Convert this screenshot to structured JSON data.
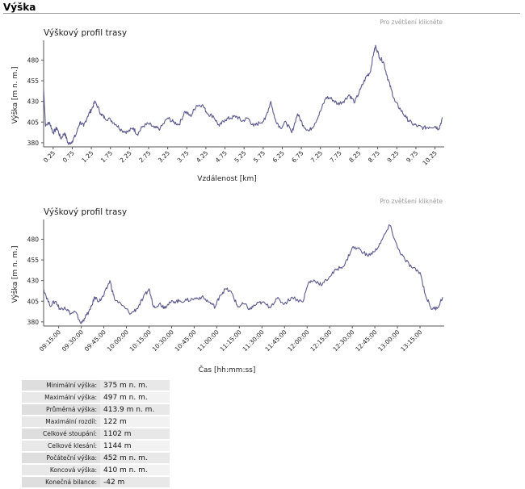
{
  "section": {
    "title": "Výška"
  },
  "zoom_hint": "Pro zvětšení klikněte",
  "chart_data": [
    {
      "type": "line",
      "title": "Výškový profil trasy",
      "xlabel": "Vzdálenost [km]",
      "ylabel": "Výška [m n. m.]",
      "xlim": [
        0,
        10.45
      ],
      "ylim": [
        375,
        500
      ],
      "yticks": [
        380,
        405,
        430,
        455,
        480
      ],
      "xticks": [
        "0.25",
        "0.75",
        "1.25",
        "1.75",
        "2.25",
        "2.75",
        "3.25",
        "3.75",
        "4.25",
        "4.75",
        "5.25",
        "5.75",
        "6.25",
        "6.75",
        "7.25",
        "7.75",
        "8.25",
        "8.75",
        "9.25",
        "9.75",
        "10.25"
      ],
      "xtick_values": [
        0.25,
        0.75,
        1.25,
        1.75,
        2.25,
        2.75,
        3.25,
        3.75,
        4.25,
        4.75,
        5.25,
        5.75,
        6.25,
        6.75,
        7.25,
        7.75,
        8.25,
        8.75,
        9.25,
        9.75,
        10.25
      ],
      "grid": false,
      "color": "#5c5a8e",
      "series": [
        {
          "x": [
            0,
            0.05,
            0.15,
            0.25,
            0.35,
            0.45,
            0.55,
            0.65,
            0.75,
            0.85,
            0.95,
            1.05,
            1.15,
            1.25,
            1.35,
            1.5,
            1.6,
            1.75,
            1.9,
            2.05,
            2.2,
            2.35,
            2.45,
            2.6,
            2.75,
            2.9,
            3.05,
            3.25,
            3.4,
            3.55,
            3.7,
            3.85,
            4.0,
            4.15,
            4.3,
            4.45,
            4.6,
            4.75,
            4.9,
            5.05,
            5.2,
            5.35,
            5.5,
            5.65,
            5.8,
            5.95,
            6.05,
            6.2,
            6.35,
            6.5,
            6.65,
            6.8,
            6.95,
            7.1,
            7.25,
            7.4,
            7.55,
            7.7,
            7.85,
            8.0,
            8.15,
            8.3,
            8.45,
            8.55,
            8.65,
            8.7,
            8.8,
            8.9,
            9.0,
            9.1,
            9.2,
            9.35,
            9.5,
            9.65,
            9.8,
            9.95,
            10.1,
            10.25,
            10.35,
            10.45
          ],
          "y": [
            445,
            400,
            405,
            392,
            398,
            385,
            392,
            378,
            382,
            390,
            405,
            400,
            412,
            420,
            430,
            415,
            410,
            408,
            402,
            395,
            393,
            398,
            390,
            400,
            403,
            398,
            397,
            410,
            405,
            402,
            418,
            412,
            425,
            426,
            415,
            412,
            400,
            408,
            410,
            412,
            406,
            410,
            400,
            404,
            408,
            430,
            410,
            398,
            405,
            392,
            415,
            401,
            394,
            403,
            418,
            435,
            433,
            427,
            430,
            438,
            429,
            445,
            460,
            465,
            490,
            497,
            483,
            478,
            460,
            445,
            430,
            420,
            410,
            403,
            400,
            398,
            399,
            400,
            397,
            410
          ]
        }
      ]
    },
    {
      "type": "line",
      "title": "Výškový profil trasy",
      "xlabel": "Čas  [hh:mm:ss]",
      "ylabel": "Výška [m n. m.]",
      "xlim": [
        0,
        265
      ],
      "ylim": [
        375,
        500
      ],
      "yticks": [
        380,
        405,
        430,
        455,
        480
      ],
      "xticks": [
        "09:15:00",
        "09:30:00",
        "09:45:00",
        "10:00:00",
        "10:15:00",
        "10:30:00",
        "10:45:00",
        "11:00:00",
        "11:15:00",
        "11:30:00",
        "11:45:00",
        "12:00:00",
        "12:15:00",
        "12:30:00",
        "12:45:00",
        "13:00:00",
        "13:15:00"
      ],
      "xtick_values": [
        10,
        25,
        40,
        55,
        70,
        85,
        100,
        115,
        130,
        145,
        160,
        175,
        190,
        205,
        220,
        235,
        250
      ],
      "grid": false,
      "color": "#5c5a8e",
      "series": [
        {
          "x": [
            0,
            4,
            8,
            11,
            14,
            18,
            21,
            25,
            27,
            31,
            34,
            37,
            40,
            44,
            47,
            52,
            58,
            62,
            66,
            70,
            73,
            77,
            80,
            82,
            86,
            90,
            95,
            100,
            105,
            110,
            114,
            117,
            121,
            125,
            129,
            133,
            137,
            140,
            145,
            150,
            155,
            160,
            165,
            172,
            176,
            180,
            185,
            190,
            195,
            200,
            205,
            210,
            215,
            220,
            225,
            230,
            235,
            240,
            245,
            250,
            254,
            258,
            262,
            265
          ],
          "y": [
            420,
            400,
            405,
            395,
            398,
            390,
            392,
            378,
            384,
            395,
            410,
            405,
            412,
            430,
            408,
            400,
            390,
            396,
            408,
            420,
            398,
            402,
            398,
            400,
            405,
            405,
            406,
            408,
            410,
            404,
            398,
            412,
            420,
            415,
            398,
            402,
            395,
            400,
            404,
            398,
            408,
            402,
            410,
            404,
            428,
            430,
            425,
            435,
            444,
            449,
            470,
            468,
            460,
            465,
            480,
            497,
            470,
            455,
            445,
            440,
            410,
            395,
            398,
            410
          ]
        }
      ]
    }
  ],
  "stats": [
    {
      "label": "Minimální výška:",
      "value": "375 m n. m."
    },
    {
      "label": "Maximální výška:",
      "value": "497 m n. m."
    },
    {
      "label": "Průměrná výška:",
      "value": "413.9 m n. m."
    },
    {
      "label": "Maximální rozdíl:",
      "value": "122 m"
    },
    {
      "label": "Celkové stoupání:",
      "value": "1102 m"
    },
    {
      "label": "Celkové klesání:",
      "value": "1144 m"
    },
    {
      "label": "Počáteční výška:",
      "value": "452 m n. m."
    },
    {
      "label": "Koncová výška:",
      "value": "410 m n. m."
    },
    {
      "label": "Konečná bilance:",
      "value": "-42 m"
    }
  ]
}
